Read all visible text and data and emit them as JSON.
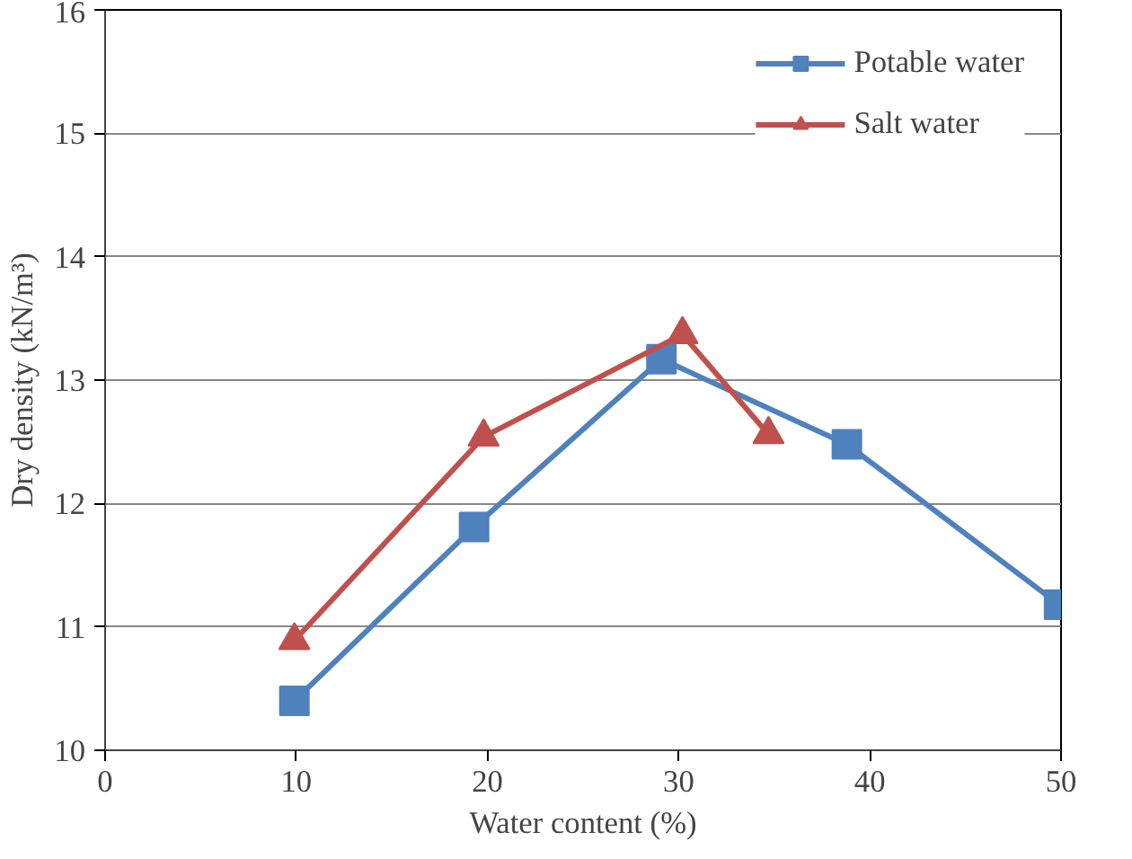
{
  "chart_data": {
    "type": "line",
    "xlabel": "Water content (%)",
    "ylabel": "Dry density (kN/m³)",
    "xlim": [
      0,
      50
    ],
    "xticks": [
      0,
      10,
      20,
      30,
      40,
      50
    ],
    "ylim": [
      10,
      16
    ],
    "yticks": [
      10,
      11,
      12,
      13,
      14,
      15,
      16
    ],
    "grid": "y",
    "legend": "top right",
    "line_style": "solid",
    "series": [
      {
        "name": "Potable water",
        "color": "#4f81bd",
        "marker": "square",
        "x": [
          9.9,
          19.3,
          29.1,
          38.8,
          49.9
        ],
        "values": [
          10.4,
          11.81,
          13.17,
          12.48,
          11.18
        ]
      },
      {
        "name": "Salt water",
        "color": "#c0504d",
        "marker": "triangle",
        "x": [
          9.9,
          19.8,
          30.2,
          34.7
        ],
        "values": [
          10.89,
          12.54,
          13.37,
          12.56
        ]
      }
    ]
  }
}
